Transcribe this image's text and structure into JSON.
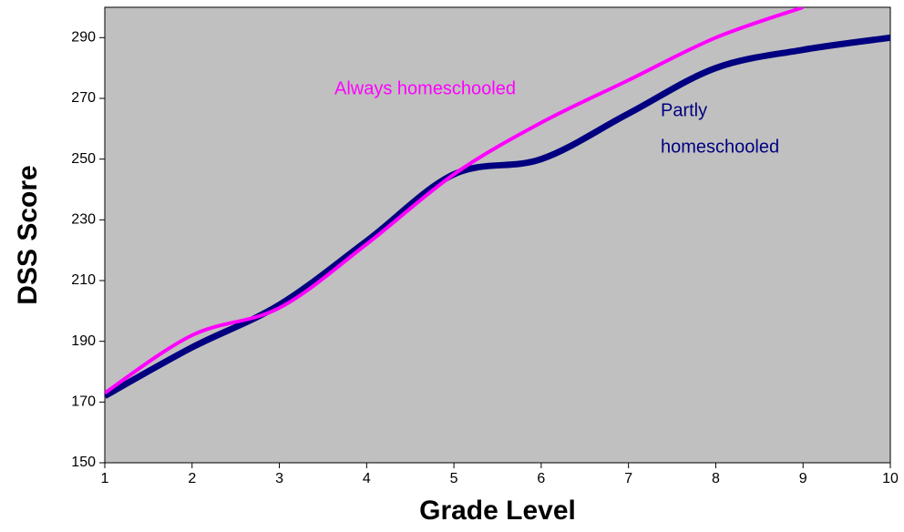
{
  "chart_data": {
    "type": "line",
    "xlabel": "Grade Level",
    "ylabel": "DSS Score",
    "x": [
      1,
      2,
      3,
      4,
      5,
      6,
      7,
      8,
      9,
      10
    ],
    "series": [
      {
        "name": "Always homeschooled",
        "color": "#ff00ff",
        "values": [
          173,
          192,
          201,
          222,
          245,
          262,
          276,
          290,
          300,
          null
        ]
      },
      {
        "name": "Partly homeschooled",
        "color": "#000080",
        "values": [
          172,
          188,
          202,
          223,
          245,
          250,
          265,
          280,
          286,
          290
        ]
      }
    ],
    "annotations": [
      "Always homeschooled",
      "Partly",
      "homeschooled"
    ],
    "xlim": [
      1,
      10
    ],
    "xticks": [
      1,
      2,
      3,
      4,
      5,
      6,
      7,
      8,
      9,
      10
    ],
    "ylim": [
      150,
      300
    ],
    "yticks": [
      150,
      170,
      190,
      210,
      230,
      250,
      270,
      290
    ],
    "background": "#c0c0c0"
  }
}
